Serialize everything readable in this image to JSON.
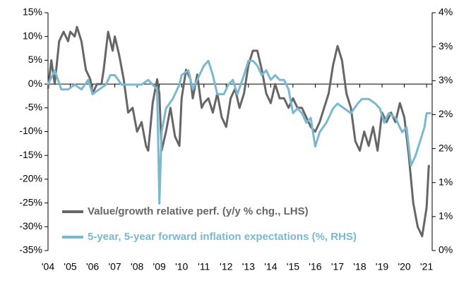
{
  "chart_data": {
    "type": "line",
    "xlim": [
      2004,
      2021.25
    ],
    "xticks": [
      {
        "value": 2004,
        "label": "'04"
      },
      {
        "value": 2005,
        "label": "'05"
      },
      {
        "value": 2006,
        "label": "'06"
      },
      {
        "value": 2007,
        "label": "'07"
      },
      {
        "value": 2008,
        "label": "'08"
      },
      {
        "value": 2009,
        "label": "'09"
      },
      {
        "value": 2010,
        "label": "'10"
      },
      {
        "value": 2011,
        "label": "'11"
      },
      {
        "value": 2012,
        "label": "'12"
      },
      {
        "value": 2013,
        "label": "'13"
      },
      {
        "value": 2014,
        "label": "'14"
      },
      {
        "value": 2015,
        "label": "'15"
      },
      {
        "value": 2016,
        "label": "'16"
      },
      {
        "value": 2017,
        "label": "'17"
      },
      {
        "value": 2018,
        "label": "'18"
      },
      {
        "value": 2019,
        "label": "'19"
      },
      {
        "value": 2020,
        "label": "'20"
      },
      {
        "value": 2021,
        "label": "'21"
      }
    ],
    "ylim": [
      -35,
      15
    ],
    "yticks": [
      {
        "value": -35,
        "label": "-35%"
      },
      {
        "value": -30,
        "label": "-30%"
      },
      {
        "value": -25,
        "label": "-25%"
      },
      {
        "value": -20,
        "label": "-20%"
      },
      {
        "value": -15,
        "label": "-15%"
      },
      {
        "value": -10,
        "label": "-10%"
      },
      {
        "value": -5,
        "label": "-5%"
      },
      {
        "value": 0,
        "label": "0%"
      },
      {
        "value": 5,
        "label": "5%"
      },
      {
        "value": 10,
        "label": "10%"
      },
      {
        "value": 15,
        "label": "15%"
      }
    ],
    "y2lim": [
      0,
      4
    ],
    "y2ticks": [
      {
        "value": 0,
        "label": "0%"
      },
      {
        "value": 0.571,
        "label": "1%"
      },
      {
        "value": 1.143,
        "label": "1%"
      },
      {
        "value": 1.714,
        "label": "2%"
      },
      {
        "value": 2.286,
        "label": "2%"
      },
      {
        "value": 2.857,
        "label": "3%"
      },
      {
        "value": 3.429,
        "label": "3%"
      },
      {
        "value": 4,
        "label": "4%"
      }
    ],
    "series": [
      {
        "name": "Value/growth relative perf. (y/y % chg., LHS)",
        "color": "#666666",
        "axis": "y",
        "x": [
          2004.0,
          2004.15,
          2004.3,
          2004.5,
          2004.7,
          2004.9,
          2005.0,
          2005.2,
          2005.3,
          2005.5,
          2005.7,
          2005.9,
          2006.0,
          2006.2,
          2006.4,
          2006.5,
          2006.7,
          2006.9,
          2007.0,
          2007.2,
          2007.4,
          2007.6,
          2007.8,
          2008.0,
          2008.2,
          2008.4,
          2008.5,
          2008.7,
          2008.9,
          2009.0,
          2009.1,
          2009.3,
          2009.5,
          2009.7,
          2009.9,
          2010.0,
          2010.2,
          2010.4,
          2010.5,
          2010.7,
          2010.9,
          2011.0,
          2011.2,
          2011.4,
          2011.6,
          2011.8,
          2012.0,
          2012.2,
          2012.4,
          2012.6,
          2012.8,
          2013.0,
          2013.2,
          2013.4,
          2013.6,
          2013.8,
          2014.0,
          2014.2,
          2014.4,
          2014.6,
          2014.8,
          2015.0,
          2015.2,
          2015.4,
          2015.6,
          2015.8,
          2016.0,
          2016.2,
          2016.4,
          2016.6,
          2016.8,
          2017.0,
          2017.2,
          2017.4,
          2017.6,
          2017.8,
          2018.0,
          2018.2,
          2018.4,
          2018.6,
          2018.8,
          2019.0,
          2019.2,
          2019.4,
          2019.6,
          2019.8,
          2020.0,
          2020.2,
          2020.4,
          2020.6,
          2020.8,
          2021.0,
          2021.1
        ],
        "values": [
          -1,
          5,
          0,
          9,
          11,
          9,
          11,
          10,
          12,
          9,
          3,
          1,
          -2,
          0,
          0,
          3,
          11,
          7,
          10,
          6,
          1,
          -6,
          -5,
          -10,
          -8,
          -13,
          -14,
          -4,
          1,
          -2,
          -14,
          -10,
          -5,
          -11,
          -13,
          -3,
          3,
          1,
          -3,
          2,
          -5,
          -4,
          -3,
          -6,
          -2,
          -7,
          -9,
          -3,
          -1,
          -5,
          -2,
          4,
          7,
          7,
          3,
          -2,
          -4,
          0,
          -3,
          -3,
          -5,
          -3,
          -5,
          -5,
          -7,
          -9,
          -10,
          -8,
          -5,
          -2,
          4,
          8,
          5,
          -2,
          -5,
          -12,
          -14,
          -10,
          -13,
          -9,
          -14,
          -6,
          -8,
          -6,
          -8,
          -4,
          -7,
          -15,
          -25,
          -30,
          -32,
          -26,
          -17
        ]
      },
      {
        "name": "5-year, 5-year forward inflation expectations (%, RHS)",
        "color": "#7ab8d0",
        "axis": "y2",
        "x": [
          2004.0,
          2004.3,
          2004.6,
          2004.9,
          2005.2,
          2005.5,
          2005.8,
          2006.0,
          2006.3,
          2006.6,
          2006.8,
          2007.0,
          2007.3,
          2007.6,
          2007.9,
          2008.2,
          2008.5,
          2008.7,
          2008.9,
          2009.0,
          2009.1,
          2009.3,
          2009.6,
          2009.9,
          2010.0,
          2010.3,
          2010.5,
          2010.8,
          2011.0,
          2011.2,
          2011.4,
          2011.6,
          2011.9,
          2012.1,
          2012.3,
          2012.5,
          2012.8,
          2013.0,
          2013.2,
          2013.4,
          2013.6,
          2013.8,
          2014.0,
          2014.2,
          2014.4,
          2014.6,
          2014.8,
          2015.0,
          2015.2,
          2015.4,
          2015.6,
          2015.8,
          2016.0,
          2016.2,
          2016.5,
          2016.8,
          2017.0,
          2017.3,
          2017.6,
          2017.9,
          2018.1,
          2018.4,
          2018.7,
          2018.9,
          2019.1,
          2019.3,
          2019.6,
          2019.9,
          2020.1,
          2020.3,
          2020.5,
          2020.7,
          2020.9,
          2021.0,
          2021.2
        ],
        "values": [
          2.79,
          3.03,
          2.71,
          2.71,
          2.79,
          2.71,
          2.87,
          2.63,
          2.71,
          2.79,
          2.95,
          2.95,
          2.79,
          2.79,
          2.79,
          2.79,
          2.87,
          2.79,
          2.71,
          0.79,
          1.99,
          2.39,
          2.55,
          2.79,
          2.95,
          3.03,
          2.71,
          2.95,
          3.11,
          3.19,
          2.95,
          2.63,
          2.63,
          2.79,
          2.87,
          2.63,
          2.95,
          3.19,
          3.19,
          3.11,
          2.95,
          3.03,
          2.87,
          2.95,
          2.87,
          2.87,
          2.71,
          2.31,
          2.39,
          2.31,
          2.15,
          2.23,
          1.75,
          1.99,
          2.15,
          2.39,
          2.47,
          2.39,
          2.31,
          2.47,
          2.55,
          2.55,
          2.47,
          2.39,
          2.15,
          2.31,
          2.23,
          1.99,
          2.07,
          1.43,
          1.59,
          1.83,
          2.07,
          2.31,
          2.31
        ]
      }
    ]
  }
}
